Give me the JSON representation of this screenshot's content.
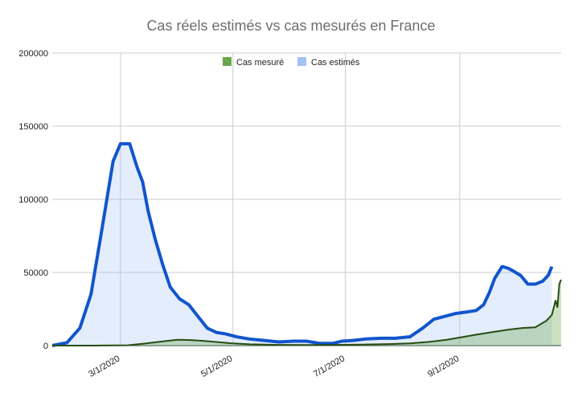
{
  "chart_data": {
    "type": "area",
    "title": "Cas réels estimés vs cas mesurés en France",
    "xlabel": "",
    "ylabel": "",
    "x_ticks": [
      "3/1/2020",
      "5/1/2020",
      "7/1/2020",
      "9/1/2020"
    ],
    "x_tick_dates": [
      "2020-03-01",
      "2020-05-01",
      "2020-07-01",
      "2020-09-01"
    ],
    "x_range": [
      "2020-01-24",
      "2020-10-26"
    ],
    "ylim": [
      0,
      200000
    ],
    "y_ticks": [
      "0",
      "50000",
      "100000",
      "150000",
      "200000"
    ],
    "legend_position": "top-center",
    "grid": "vertical lines at x ticks, horizontal lines at y ticks",
    "series": [
      {
        "name": "Cas mesuré",
        "color": "#6aa84f",
        "line_color": "#274e13",
        "x": [
          "2020-01-24",
          "2020-02-15",
          "2020-03-05",
          "2020-03-15",
          "2020-03-25",
          "2020-04-01",
          "2020-04-08",
          "2020-04-15",
          "2020-04-22",
          "2020-04-30",
          "2020-05-10",
          "2020-05-25",
          "2020-06-10",
          "2020-06-25",
          "2020-07-10",
          "2020-07-25",
          "2020-08-05",
          "2020-08-15",
          "2020-08-25",
          "2020-09-01",
          "2020-09-10",
          "2020-09-20",
          "2020-09-28",
          "2020-10-05",
          "2020-10-12",
          "2020-10-18",
          "2020-10-21",
          "2020-10-22",
          "2020-10-23",
          "2020-10-24",
          "2020-10-25",
          "2020-10-26"
        ],
        "values": [
          0,
          0,
          200,
          1500,
          3000,
          4000,
          3800,
          3200,
          2500,
          1600,
          900,
          500,
          400,
          500,
          700,
          1000,
          1500,
          2500,
          4000,
          5500,
          7500,
          9500,
          11000,
          12000,
          12500,
          17000,
          21000,
          26000,
          31000,
          26000,
          42000,
          45000
        ]
      },
      {
        "name": "Cas estimés",
        "color": "#a4c2f4",
        "line_color": "#1155cc",
        "x": [
          "2020-01-24",
          "2020-02-01",
          "2020-02-08",
          "2020-02-14",
          "2020-02-20",
          "2020-02-26",
          "2020-03-01",
          "2020-03-06",
          "2020-03-10",
          "2020-03-13",
          "2020-03-16",
          "2020-03-20",
          "2020-03-24",
          "2020-03-28",
          "2020-04-02",
          "2020-04-07",
          "2020-04-12",
          "2020-04-17",
          "2020-04-22",
          "2020-04-27",
          "2020-05-03",
          "2020-05-10",
          "2020-05-18",
          "2020-05-26",
          "2020-06-03",
          "2020-06-10",
          "2020-06-17",
          "2020-06-24",
          "2020-06-29",
          "2020-07-05",
          "2020-07-12",
          "2020-07-20",
          "2020-07-28",
          "2020-08-05",
          "2020-08-12",
          "2020-08-18",
          "2020-08-24",
          "2020-08-30",
          "2020-09-05",
          "2020-09-10",
          "2020-09-14",
          "2020-09-17",
          "2020-09-20",
          "2020-09-24",
          "2020-09-27",
          "2020-09-30",
          "2020-10-04",
          "2020-10-08",
          "2020-10-12",
          "2020-10-16",
          "2020-10-19",
          "2020-10-21"
        ],
        "values": [
          0,
          2000,
          12000,
          35000,
          80000,
          126000,
          138000,
          138000,
          122000,
          112000,
          92000,
          72000,
          55000,
          40000,
          32000,
          28000,
          20000,
          12000,
          9000,
          8000,
          6000,
          4500,
          3500,
          2500,
          3000,
          3000,
          1500,
          1500,
          3000,
          3500,
          4500,
          5000,
          5000,
          6000,
          12000,
          18000,
          20000,
          22000,
          23000,
          24000,
          28000,
          36000,
          46000,
          54000,
          53000,
          51000,
          48000,
          42000,
          42000,
          44000,
          48000,
          54000
        ]
      }
    ],
    "trend_lines": [
      {
        "of": "Cas estimés",
        "x": [
          "2020-01-24",
          "2020-02-01",
          "2020-02-08",
          "2020-02-14",
          "2020-02-20",
          "2020-02-26",
          "2020-03-01",
          "2020-03-06",
          "2020-03-10",
          "2020-03-13",
          "2020-03-16",
          "2020-03-20",
          "2020-03-24",
          "2020-03-28",
          "2020-04-02",
          "2020-04-07",
          "2020-04-12",
          "2020-04-17",
          "2020-04-22",
          "2020-04-27",
          "2020-05-03",
          "2020-05-10",
          "2020-05-18",
          "2020-05-26",
          "2020-06-03",
          "2020-06-10",
          "2020-06-17",
          "2020-06-24",
          "2020-06-29",
          "2020-07-05",
          "2020-07-12",
          "2020-07-20",
          "2020-07-28",
          "2020-08-05",
          "2020-08-12",
          "2020-08-18",
          "2020-08-24",
          "2020-08-30",
          "2020-09-05",
          "2020-09-10",
          "2020-09-14",
          "2020-09-17",
          "2020-09-20",
          "2020-09-24",
          "2020-09-27",
          "2020-09-30",
          "2020-10-04",
          "2020-10-08",
          "2020-10-12",
          "2020-10-16",
          "2020-10-19",
          "2020-10-21"
        ],
        "values": [
          0,
          2000,
          12000,
          35000,
          80000,
          126000,
          138000,
          138000,
          122000,
          112000,
          92000,
          72000,
          55000,
          40000,
          32000,
          28000,
          20000,
          12000,
          9000,
          8000,
          6000,
          4500,
          3500,
          2500,
          3000,
          3000,
          1500,
          1500,
          3000,
          3500,
          4500,
          5000,
          5000,
          6000,
          12000,
          18000,
          20000,
          22000,
          23000,
          24000,
          28000,
          36000,
          46000,
          54000,
          53000,
          51000,
          48000,
          42000,
          42000,
          44000,
          48000,
          54000
        ]
      }
    ]
  }
}
